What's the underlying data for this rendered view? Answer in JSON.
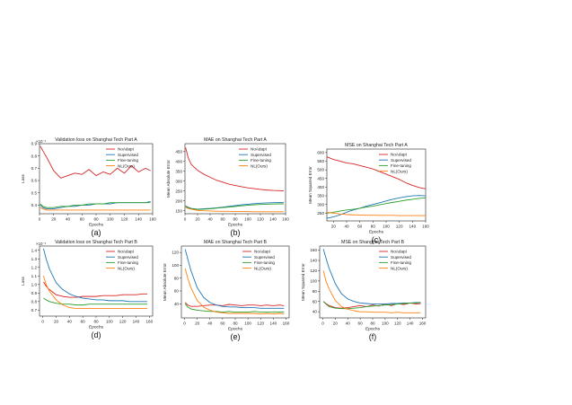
{
  "legend_labels": [
    "NoAdapt",
    "Supervised",
    "Fine-tuning",
    "NL(Ours)"
  ],
  "colors": {
    "NoAdapt": "#d62728",
    "Supervised": "#1f77b4",
    "Fine-tuning": "#2ca02c",
    "NL(Ours)": "#ff7f0e"
  },
  "chart_data": [
    {
      "type": "line",
      "caption": "(a)",
      "title": "Validation loss on Shanghai Tech Part A",
      "xlabel": "Epochs",
      "ylabel": "Loss",
      "scale_note": "×10⁻¹",
      "xlim": [
        0,
        160
      ],
      "ylim": [
        0.33,
        0.9
      ],
      "xticks": [
        0,
        20,
        40,
        60,
        80,
        100,
        120,
        140,
        160
      ],
      "yticks": [
        0.4,
        0.5,
        0.6,
        0.7,
        0.8,
        0.9
      ],
      "ytick_labels": [
        "0.4",
        "0.5",
        "0.6",
        "0.7",
        "0.8",
        "0.9"
      ],
      "x": [
        1,
        5,
        10,
        20,
        30,
        40,
        50,
        60,
        70,
        80,
        90,
        100,
        110,
        120,
        130,
        140,
        150,
        157
      ],
      "series": [
        {
          "name": "NoAdapt",
          "values": [
            0.88,
            0.84,
            0.79,
            0.68,
            0.62,
            0.64,
            0.66,
            0.65,
            0.69,
            0.64,
            0.67,
            0.65,
            0.7,
            0.66,
            0.72,
            0.67,
            0.7,
            0.68
          ]
        },
        {
          "name": "Supervised",
          "values": [
            0.4,
            0.38,
            0.37,
            0.37,
            0.38,
            0.39,
            0.39,
            0.4,
            0.4,
            0.41,
            0.41,
            0.41,
            0.42,
            0.42,
            0.42,
            0.42,
            0.42,
            0.43
          ]
        },
        {
          "name": "Fine-tuning",
          "values": [
            0.41,
            0.39,
            0.38,
            0.38,
            0.39,
            0.39,
            0.4,
            0.4,
            0.41,
            0.41,
            0.41,
            0.42,
            0.42,
            0.42,
            0.42,
            0.42,
            0.42,
            0.42
          ]
        },
        {
          "name": "NL(Ours)",
          "values": [
            0.38,
            0.37,
            0.36,
            0.36,
            0.36,
            0.36,
            0.36,
            0.36,
            0.36,
            0.36,
            0.36,
            0.36,
            0.36,
            0.36,
            0.36,
            0.36,
            0.36,
            0.36
          ]
        }
      ]
    },
    {
      "type": "line",
      "caption": "(b)",
      "title": "MAE on Shanghai Tech Part A",
      "xlabel": "Epochs",
      "ylabel": "Mean Absolute Error",
      "xlim": [
        0,
        160
      ],
      "ylim": [
        135,
        490
      ],
      "xticks": [
        0,
        20,
        40,
        60,
        80,
        100,
        120,
        140,
        160
      ],
      "yticks": [
        150,
        200,
        250,
        300,
        350,
        400,
        450
      ],
      "ytick_labels": [
        "150",
        "200",
        "250",
        "300",
        "350",
        "400",
        "450"
      ],
      "x": [
        1,
        5,
        10,
        20,
        30,
        40,
        50,
        60,
        70,
        80,
        90,
        100,
        110,
        120,
        130,
        140,
        150,
        157
      ],
      "series": [
        {
          "name": "NoAdapt",
          "values": [
            470,
            420,
            385,
            355,
            335,
            320,
            305,
            295,
            285,
            278,
            272,
            266,
            262,
            258,
            255,
            253,
            252,
            251
          ]
        },
        {
          "name": "Supervised",
          "values": [
            175,
            168,
            162,
            158,
            160,
            162,
            165,
            168,
            172,
            176,
            180,
            183,
            186,
            188,
            190,
            191,
            192,
            192
          ]
        },
        {
          "name": "Fine-tuning",
          "values": [
            172,
            165,
            160,
            157,
            158,
            160,
            163,
            166,
            169,
            172,
            175,
            178,
            180,
            182,
            183,
            184,
            185,
            185
          ]
        },
        {
          "name": "NL(Ours)",
          "values": [
            168,
            162,
            158,
            152,
            150,
            149,
            148,
            147,
            147,
            146,
            146,
            146,
            145,
            145,
            145,
            145,
            145,
            145
          ]
        }
      ]
    },
    {
      "type": "line",
      "caption": "(c)",
      "title": "MSE on Shanghai Tech Part A",
      "xlabel": "Epochs",
      "ylabel": "Mean Squared Error",
      "xlim": [
        10,
        160
      ],
      "ylim": [
        205,
        620
      ],
      "xticks": [
        20,
        40,
        60,
        80,
        100,
        120,
        140,
        160
      ],
      "yticks": [
        250,
        300,
        350,
        400,
        450,
        500,
        550,
        600
      ],
      "ytick_labels": [
        "250",
        "300",
        "350",
        "400",
        "450",
        "500",
        "550",
        "600"
      ],
      "x": [
        10,
        20,
        30,
        40,
        50,
        60,
        70,
        80,
        90,
        100,
        110,
        120,
        130,
        140,
        150,
        160
      ],
      "series": [
        {
          "name": "NoAdapt",
          "values": [
            575,
            560,
            550,
            540,
            535,
            525,
            515,
            505,
            490,
            475,
            460,
            445,
            425,
            410,
            398,
            390
          ]
        },
        {
          "name": "Supervised",
          "values": [
            220,
            228,
            240,
            255,
            268,
            278,
            290,
            300,
            310,
            320,
            330,
            338,
            345,
            350,
            352,
            350
          ]
        },
        {
          "name": "Fine-tuning",
          "values": [
            250,
            255,
            262,
            268,
            272,
            278,
            285,
            290,
            298,
            305,
            312,
            318,
            325,
            330,
            335,
            338
          ]
        },
        {
          "name": "NL(Ours)",
          "values": [
            255,
            250,
            245,
            242,
            240,
            239,
            238,
            238,
            237,
            237,
            237,
            236,
            236,
            236,
            236,
            236
          ]
        }
      ]
    },
    {
      "type": "line",
      "caption": "(d)",
      "title": "Validation loss on Shanghai Tech Part B",
      "xlabel": "Epochs",
      "ylabel": "Loss",
      "scale_note": "×10⁻¹",
      "xlim": [
        -5,
        165
      ],
      "ylim": [
        0.63,
        1.45
      ],
      "xticks": [
        0,
        20,
        40,
        60,
        80,
        100,
        120,
        140,
        160
      ],
      "yticks": [
        0.7,
        0.8,
        0.9,
        1.0,
        1.1,
        1.2,
        1.3,
        1.4
      ],
      "ytick_labels": [
        "0.7",
        "0.8",
        "0.9",
        "1.0",
        "1.1",
        "1.2",
        "1.3",
        "1.4"
      ],
      "x": [
        1,
        5,
        10,
        20,
        30,
        40,
        50,
        60,
        70,
        80,
        90,
        100,
        110,
        120,
        130,
        140,
        150,
        157
      ],
      "series": [
        {
          "name": "NoAdapt",
          "values": [
            1.03,
            0.98,
            0.94,
            0.88,
            0.86,
            0.85,
            0.85,
            0.86,
            0.86,
            0.86,
            0.87,
            0.87,
            0.87,
            0.88,
            0.88,
            0.88,
            0.89,
            0.89
          ]
        },
        {
          "name": "Supervised",
          "values": [
            1.42,
            1.3,
            1.18,
            1.02,
            0.94,
            0.89,
            0.86,
            0.84,
            0.83,
            0.82,
            0.82,
            0.81,
            0.81,
            0.81,
            0.8,
            0.8,
            0.8,
            0.8
          ]
        },
        {
          "name": "Fine-tuning",
          "values": [
            0.84,
            0.82,
            0.8,
            0.78,
            0.77,
            0.77,
            0.76,
            0.76,
            0.77,
            0.77,
            0.77,
            0.77,
            0.77,
            0.77,
            0.77,
            0.77,
            0.77,
            0.77
          ]
        },
        {
          "name": "NL(Ours)",
          "values": [
            1.1,
            1.0,
            0.92,
            0.82,
            0.76,
            0.73,
            0.72,
            0.72,
            0.72,
            0.72,
            0.72,
            0.72,
            0.72,
            0.72,
            0.72,
            0.72,
            0.72,
            0.72
          ]
        }
      ]
    },
    {
      "type": "line",
      "caption": "(e)",
      "title": "MAE on Shanghai Tech Part B",
      "xlabel": "Epochs",
      "ylabel": "Mean Absolute Error",
      "xlim": [
        -5,
        165
      ],
      "ylim": [
        18,
        130
      ],
      "xticks": [
        0,
        20,
        40,
        60,
        80,
        100,
        120,
        140,
        160
      ],
      "yticks": [
        40,
        60,
        80,
        100,
        120
      ],
      "ytick_labels": [
        "40",
        "60",
        "80",
        "100",
        "120"
      ],
      "x": [
        1,
        5,
        10,
        20,
        30,
        40,
        50,
        60,
        70,
        80,
        90,
        100,
        110,
        120,
        130,
        140,
        150,
        157
      ],
      "series": [
        {
          "name": "NoAdapt",
          "values": [
            42,
            38,
            36,
            36,
            37,
            38,
            38,
            37,
            39,
            38,
            37,
            38,
            38,
            37,
            38,
            37,
            38,
            37
          ]
        },
        {
          "name": "Supervised",
          "values": [
            125,
            110,
            92,
            65,
            50,
            42,
            38,
            36,
            35,
            35,
            34,
            34,
            34,
            33,
            33,
            33,
            33,
            33
          ]
        },
        {
          "name": "Fine-tuning",
          "values": [
            40,
            35,
            32,
            30,
            29,
            28,
            28,
            27,
            28,
            27,
            27,
            27,
            28,
            27,
            27,
            27,
            27,
            27
          ]
        },
        {
          "name": "NL(Ours)",
          "values": [
            95,
            80,
            65,
            45,
            35,
            30,
            27,
            26,
            25,
            25,
            25,
            25,
            25,
            24,
            25,
            24,
            25,
            24
          ]
        }
      ]
    },
    {
      "type": "line",
      "caption": "(f)",
      "title": "MSE on Shanghai Tech Part B",
      "xlabel": "Epochs",
      "ylabel": "Mean Squared Error",
      "xlim": [
        -5,
        165
      ],
      "ylim": [
        28,
        168
      ],
      "xticks": [
        0,
        20,
        40,
        60,
        80,
        100,
        120,
        140,
        160
      ],
      "yticks": [
        40,
        60,
        80,
        100,
        120,
        140,
        160
      ],
      "ytick_labels": [
        "40",
        "60",
        "80",
        "100",
        "120",
        "140",
        "160"
      ],
      "x": [
        1,
        5,
        10,
        20,
        30,
        40,
        50,
        60,
        70,
        80,
        90,
        100,
        110,
        120,
        130,
        140,
        150,
        157
      ],
      "series": [
        {
          "name": "NoAdapt",
          "values": [
            60,
            56,
            52,
            48,
            47,
            48,
            50,
            52,
            50,
            53,
            51,
            55,
            52,
            56,
            54,
            57,
            55,
            56
          ]
        },
        {
          "name": "Supervised",
          "values": [
            162,
            145,
            125,
            95,
            75,
            65,
            60,
            57,
            56,
            55,
            55,
            55,
            56,
            56,
            57,
            57,
            58,
            58
          ]
        },
        {
          "name": "Fine-tuning",
          "values": [
            60,
            55,
            50,
            47,
            46,
            46,
            47,
            48,
            50,
            51,
            52,
            53,
            54,
            55,
            56,
            57,
            57,
            58
          ]
        },
        {
          "name": "NL(Ours)",
          "values": [
            120,
            100,
            85,
            62,
            50,
            45,
            42,
            40,
            40,
            39,
            39,
            39,
            38,
            39,
            38,
            38,
            38,
            38
          ]
        }
      ]
    }
  ]
}
